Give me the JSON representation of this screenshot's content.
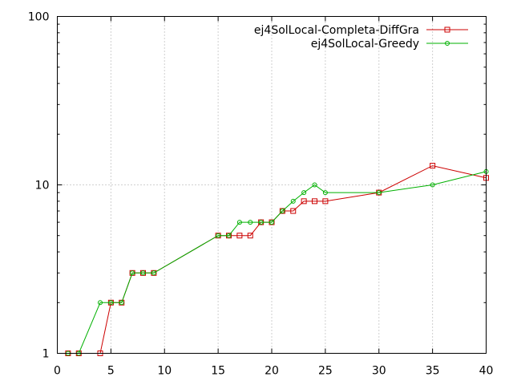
{
  "chart_data": {
    "type": "line",
    "title": "",
    "xlabel": "",
    "ylabel": "",
    "xlim": [
      0,
      40
    ],
    "ylim": [
      1,
      100
    ],
    "yscale": "log",
    "x_ticks": [
      0,
      5,
      10,
      15,
      20,
      25,
      30,
      35,
      40
    ],
    "y_ticks": [
      1,
      10,
      100
    ],
    "grid": true,
    "legend_position": "top-right",
    "series": [
      {
        "name": "ej4SolLocal-Completa-DiffGra",
        "color": "#cc0000",
        "marker": "square",
        "points": [
          [
            1,
            1
          ],
          [
            2,
            1
          ],
          [
            4,
            1
          ],
          [
            5,
            2
          ],
          [
            6,
            2
          ],
          [
            7,
            3
          ],
          [
            8,
            3
          ],
          [
            9,
            3
          ],
          [
            15,
            5
          ],
          [
            16,
            5
          ],
          [
            17,
            5
          ],
          [
            18,
            5
          ],
          [
            19,
            6
          ],
          [
            20,
            6
          ],
          [
            21,
            7
          ],
          [
            22,
            7
          ],
          [
            23,
            8
          ],
          [
            24,
            8
          ],
          [
            25,
            8
          ],
          [
            30,
            9
          ],
          [
            35,
            13
          ],
          [
            40,
            11
          ]
        ]
      },
      {
        "name": "ej4SolLocal-Greedy",
        "color": "#00b000",
        "marker": "circle",
        "points": [
          [
            1,
            1
          ],
          [
            2,
            1
          ],
          [
            4,
            2
          ],
          [
            5,
            2
          ],
          [
            6,
            2
          ],
          [
            7,
            3
          ],
          [
            8,
            3
          ],
          [
            9,
            3
          ],
          [
            15,
            5
          ],
          [
            16,
            5
          ],
          [
            17,
            6
          ],
          [
            18,
            6
          ],
          [
            19,
            6
          ],
          [
            20,
            6
          ],
          [
            21,
            7
          ],
          [
            22,
            8
          ],
          [
            23,
            9
          ],
          [
            24,
            10
          ],
          [
            25,
            9
          ],
          [
            30,
            9
          ],
          [
            35,
            10
          ],
          [
            40,
            12
          ]
        ]
      }
    ]
  }
}
